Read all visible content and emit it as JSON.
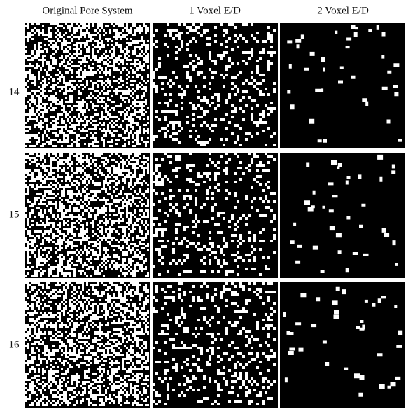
{
  "columns": [
    "Original Pore System",
    "1 Voxel E/D",
    "2 Voxel E/D"
  ],
  "rows": [
    14,
    15,
    16
  ]
}
